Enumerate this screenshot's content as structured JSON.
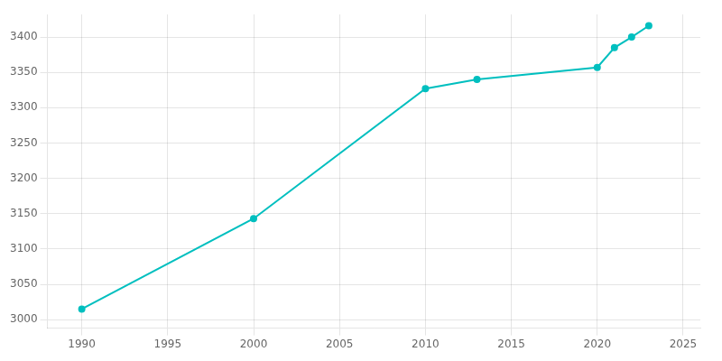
{
  "chart_data": {
    "type": "line",
    "x": [
      1990,
      2000,
      2010,
      2013,
      2020,
      2021,
      2022,
      2023
    ],
    "values": [
      3015,
      3143,
      3327,
      3340,
      3357,
      3385,
      3400,
      3416
    ],
    "color": "#00bfbf",
    "marker": "circle",
    "xlim": [
      1988,
      2026
    ],
    "xticks": [
      1990,
      1995,
      2000,
      2005,
      2010,
      2015,
      2020,
      2025
    ],
    "ylim": [
      2988,
      3432
    ],
    "yticks": [
      3000,
      3050,
      3100,
      3150,
      3200,
      3250,
      3300,
      3350,
      3400
    ],
    "grid": true
  }
}
